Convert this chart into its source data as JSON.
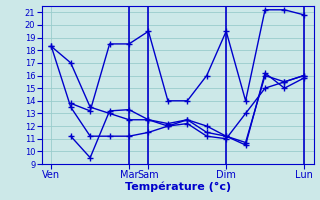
{
  "xlabel": "Température (°c)",
  "background_color": "#cce8e8",
  "grid_color": "#99cccc",
  "line_color": "#0000cc",
  "ylim": [
    9,
    21.5
  ],
  "yticks": [
    9,
    10,
    11,
    12,
    13,
    14,
    15,
    16,
    17,
    18,
    19,
    20,
    21
  ],
  "day_tick_positions": [
    0,
    8,
    10,
    18,
    26
  ],
  "day_tick_labels": [
    "Ven",
    "Mar",
    "Sam",
    "Dim",
    "Lun"
  ],
  "xlim": [
    -1,
    27
  ],
  "vlines": [
    8,
    10,
    18,
    26
  ],
  "series": [
    {
      "x": [
        0,
        2,
        4,
        6,
        8,
        10,
        12,
        14,
        16,
        18,
        20,
        22,
        24,
        26
      ],
      "y": [
        18.3,
        17.0,
        13.5,
        13.0,
        12.5,
        12.5,
        12.0,
        12.2,
        11.2,
        11.0,
        13.0,
        15.0,
        15.5,
        16.0
      ]
    },
    {
      "x": [
        0,
        2,
        4,
        6,
        8,
        10,
        12,
        14,
        16,
        18,
        20,
        22,
        24,
        26
      ],
      "y": [
        18.3,
        13.5,
        11.2,
        11.2,
        11.2,
        11.5,
        12.0,
        12.5,
        11.5,
        11.2,
        10.5,
        16.2,
        15.0,
        15.8
      ]
    },
    {
      "x": [
        2,
        4,
        6,
        8,
        10,
        12,
        14,
        16,
        18,
        20,
        22,
        24,
        26
      ],
      "y": [
        13.8,
        13.2,
        18.5,
        18.5,
        19.5,
        14.0,
        14.0,
        16.0,
        19.5,
        14.0,
        21.2,
        21.2,
        20.8
      ]
    },
    {
      "x": [
        2,
        4,
        6,
        8,
        10,
        12,
        14,
        16,
        18,
        20,
        22,
        24,
        26
      ],
      "y": [
        11.2,
        9.5,
        13.2,
        13.3,
        12.5,
        12.2,
        12.5,
        12.0,
        11.2,
        10.7,
        16.0,
        15.5,
        16.0
      ]
    }
  ]
}
